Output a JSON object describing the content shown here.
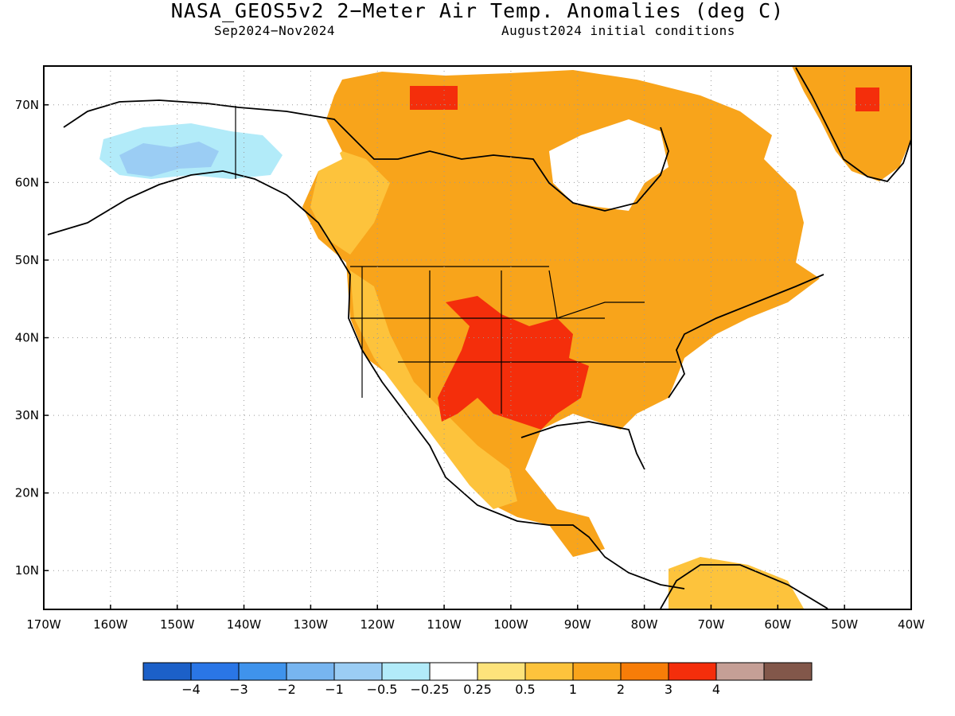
{
  "title": "NASA_GEOS5v2 2−Meter Air Temp. Anomalies (deg C)",
  "subtitle_left": "Sep2024−Nov2024",
  "subtitle_right": "August2024 initial conditions",
  "map": {
    "lon_range": [
      -170,
      -40
    ],
    "lat_range": [
      5,
      75
    ],
    "grid": "dotted",
    "lon_labels": [
      "170W",
      "160W",
      "150W",
      "140W",
      "130W",
      "120W",
      "110W",
      "100W",
      "90W",
      "80W",
      "70W",
      "60W",
      "50W",
      "40W"
    ],
    "lat_labels": [
      "10N",
      "20N",
      "30N",
      "40N",
      "50N",
      "60N",
      "70N"
    ]
  },
  "colorbar": {
    "colors": [
      "#1c60c8",
      "#2a76e6",
      "#3f93ec",
      "#77b5f0",
      "#9bcdf4",
      "#b2ebf9",
      "#ffffff",
      "#fde37b",
      "#fdc33c",
      "#f8a41b",
      "#f77d08",
      "#f42e0b",
      "#c59f96",
      "#82574a"
    ],
    "labels": [
      "−4",
      "−3",
      "−2",
      "−1",
      "−0.5",
      "−0.25",
      "0.25",
      "0.5",
      "1",
      "2",
      "3",
      "4"
    ]
  }
}
